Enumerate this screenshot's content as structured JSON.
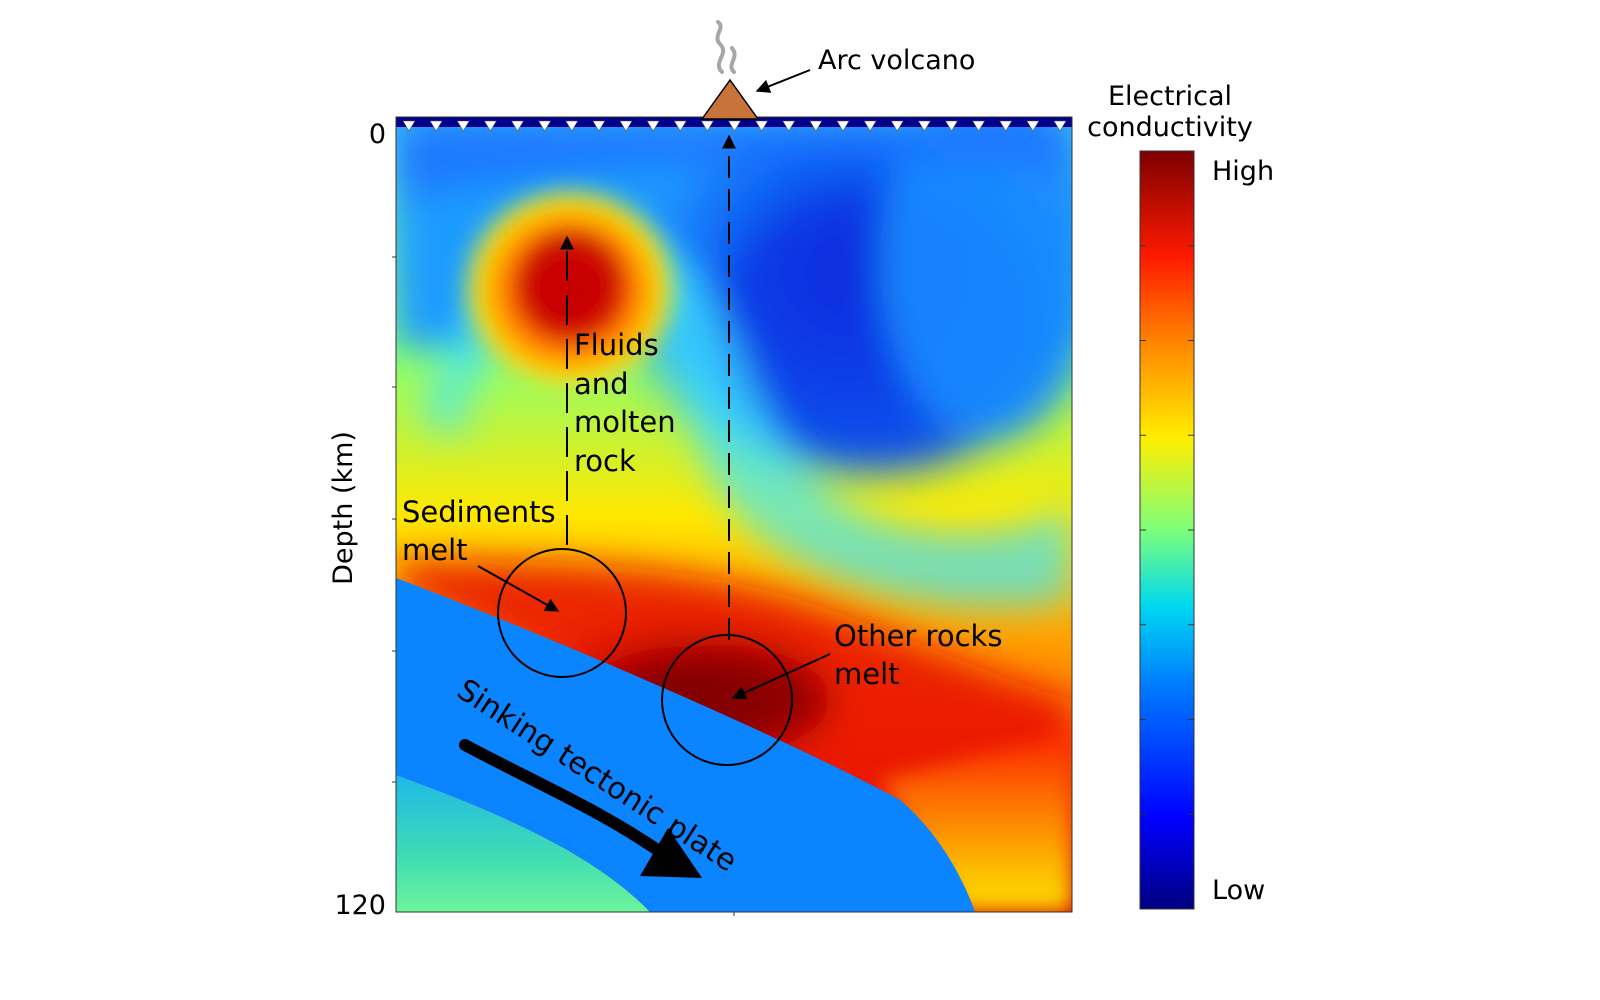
{
  "title": "",
  "annotations": {
    "volcano": "Arc volcano",
    "fluids": [
      "Fluids",
      "and",
      "molten",
      "rock"
    ],
    "sediments": [
      "Sediments",
      "melt"
    ],
    "other_rocks": [
      "Other rocks",
      "melt"
    ],
    "plate": "Sinking tectonic plate"
  },
  "axis": {
    "ylabel": "Depth (km)",
    "top_tick": "0",
    "bottom_tick": "120",
    "range": [
      0,
      120
    ]
  },
  "colorbar": {
    "title_line1": "Electrical",
    "title_line2": "conductivity",
    "high": "High",
    "low": "Low"
  },
  "colors": {
    "plate_blue": "#0a84ff",
    "volcano": "#c8733a",
    "high": "#7d0000",
    "low": "#00007f"
  },
  "icons": {
    "volcano": "volcano-icon",
    "smoke": "smoke-icon",
    "station": "station-marker-icon",
    "arrow": "arrow-icon"
  }
}
